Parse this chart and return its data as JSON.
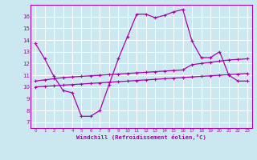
{
  "xlabel": "Windchill (Refroidissement éolien,°C)",
  "background_color": "#cbe8f0",
  "line_color": "#aa00aa",
  "grid_color": "#ffffff",
  "xlim": [
    -0.5,
    23.5
  ],
  "ylim": [
    6.5,
    17.0
  ],
  "yticks": [
    7,
    8,
    9,
    10,
    11,
    12,
    13,
    14,
    15,
    16
  ],
  "xticks": [
    0,
    1,
    2,
    3,
    4,
    5,
    6,
    7,
    8,
    9,
    10,
    11,
    12,
    13,
    14,
    15,
    16,
    17,
    18,
    19,
    20,
    21,
    22,
    23
  ],
  "line1_x": [
    0,
    1,
    2,
    3,
    4,
    5,
    6,
    7,
    8,
    9,
    10,
    11,
    12,
    13,
    14,
    15,
    16,
    17,
    18,
    19,
    20,
    21,
    22,
    23
  ],
  "line1_y": [
    13.7,
    12.4,
    10.9,
    9.7,
    9.5,
    7.5,
    7.5,
    8.0,
    10.2,
    12.4,
    14.3,
    16.2,
    16.2,
    15.9,
    16.1,
    16.4,
    16.6,
    13.9,
    12.5,
    12.5,
    13.0,
    11.0,
    10.5,
    10.5
  ],
  "line2_x": [
    0,
    1,
    2,
    3,
    4,
    5,
    6,
    7,
    8,
    9,
    10,
    11,
    12,
    13,
    14,
    15,
    16,
    17,
    18,
    19,
    20,
    21,
    22,
    23
  ],
  "line2_y": [
    10.5,
    10.6,
    10.7,
    10.8,
    10.85,
    10.9,
    10.95,
    11.0,
    11.05,
    11.1,
    11.15,
    11.2,
    11.25,
    11.3,
    11.35,
    11.4,
    11.45,
    11.9,
    12.0,
    12.1,
    12.2,
    12.3,
    12.35,
    12.4
  ],
  "line3_x": [
    0,
    1,
    2,
    3,
    4,
    5,
    6,
    7,
    8,
    9,
    10,
    11,
    12,
    13,
    14,
    15,
    16,
    17,
    18,
    19,
    20,
    21,
    22,
    23
  ],
  "line3_y": [
    10.0,
    10.05,
    10.1,
    10.15,
    10.2,
    10.25,
    10.3,
    10.35,
    10.4,
    10.45,
    10.5,
    10.55,
    10.6,
    10.65,
    10.7,
    10.75,
    10.8,
    10.85,
    10.9,
    10.95,
    11.0,
    11.05,
    11.1,
    11.15
  ]
}
